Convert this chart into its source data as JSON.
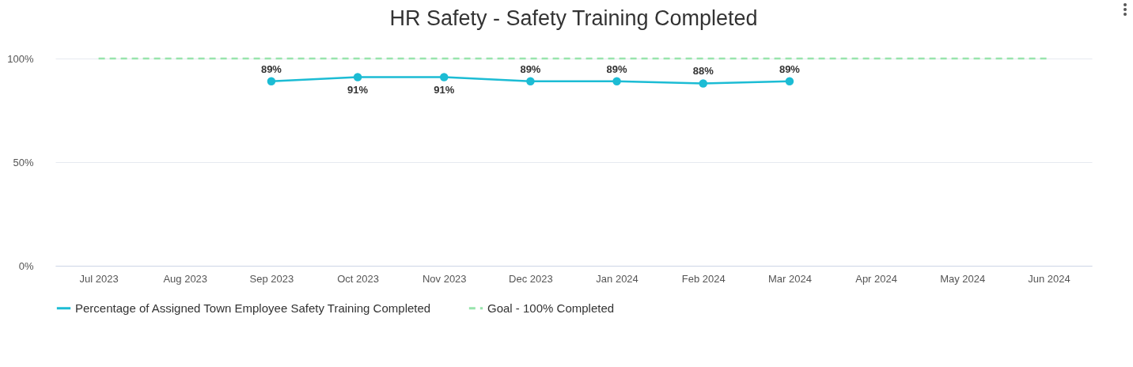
{
  "chart_data": {
    "type": "line",
    "title": "HR Safety - Safety Training Completed",
    "categories": [
      "Jul 2023",
      "Aug 2023",
      "Sep 2023",
      "Oct 2023",
      "Nov 2023",
      "Dec 2023",
      "Jan 2024",
      "Feb 2024",
      "Mar 2024",
      "Apr 2024",
      "May 2024",
      "Jun 2024"
    ],
    "series": [
      {
        "name": "Percentage of Assigned Town Employee Safety Training Completed",
        "color": "#1cbcd4",
        "marker": "circle",
        "line_style": "solid",
        "values": [
          null,
          null,
          89,
          91,
          91,
          89,
          89,
          88,
          89,
          null,
          null,
          null
        ],
        "value_labels": [
          null,
          null,
          "89%",
          "91%",
          "91%",
          "89%",
          "89%",
          "88%",
          "89%",
          null,
          null,
          null
        ]
      },
      {
        "name": "Goal - 100% Completed",
        "color": "#98e4ac",
        "marker": "none",
        "line_style": "dashed",
        "values": [
          100,
          100,
          100,
          100,
          100,
          100,
          100,
          100,
          100,
          100,
          100,
          100
        ]
      }
    ],
    "ylim": [
      0,
      100
    ],
    "yticks": [
      {
        "value": 0,
        "label": "0%"
      },
      {
        "value": 50,
        "label": "50%"
      },
      {
        "value": 100,
        "label": "100%"
      }
    ],
    "grid": "y",
    "legend": "bottom"
  }
}
